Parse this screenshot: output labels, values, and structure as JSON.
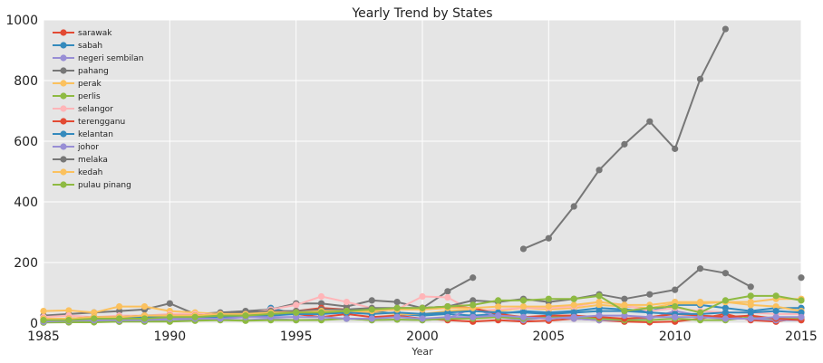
{
  "chart_data": {
    "type": "line",
    "title": "Yearly Trend by States",
    "xlabel": "Year",
    "ylabel": "",
    "xlim": [
      1985,
      2015
    ],
    "ylim": [
      0,
      1000
    ],
    "x_ticks": [
      "1985",
      "1990",
      "1995",
      "2000",
      "2005",
      "2010",
      "2015"
    ],
    "y_ticks": [
      "0",
      "200",
      "400",
      "600",
      "800",
      "1000"
    ],
    "grid": true,
    "legend_position": "top-left",
    "x": [
      1985,
      1986,
      1987,
      1988,
      1989,
      1990,
      1991,
      1992,
      1993,
      1994,
      1995,
      1996,
      1997,
      1998,
      1999,
      2000,
      2001,
      2002,
      2003,
      2004,
      2005,
      2006,
      2007,
      2008,
      2009,
      2010,
      2011,
      2012,
      2013,
      2014,
      2015
    ],
    "series": [
      {
        "name": "sarawak",
        "color": "#E24A33",
        "values": [
          5,
          3,
          8,
          6,
          10,
          25,
          30,
          28,
          35,
          40,
          30,
          20,
          30,
          20,
          25,
          15,
          10,
          5,
          10,
          5,
          8,
          15,
          10,
          5,
          3,
          5,
          15,
          30,
          10,
          5,
          18
        ]
      },
      {
        "name": "sabah",
        "color": "#348ABD",
        "values": [
          5,
          8,
          10,
          10,
          12,
          15,
          18,
          20,
          20,
          50,
          30,
          30,
          40,
          40,
          30,
          25,
          30,
          25,
          30,
          40,
          35,
          40,
          50,
          45,
          40,
          60,
          60,
          50,
          40,
          50,
          50
        ]
      },
      {
        "name": "negeri sembilan",
        "color": "#988ED5",
        "values": [
          3,
          3,
          5,
          5,
          8,
          8,
          10,
          12,
          10,
          15,
          10,
          12,
          15,
          10,
          12,
          10,
          15,
          50,
          20,
          10,
          20,
          15,
          10,
          10,
          15,
          40,
          25,
          20,
          15,
          10,
          10
        ]
      },
      {
        "name": "pahang",
        "color": "#777777",
        "values": [
          25,
          30,
          35,
          40,
          45,
          65,
          30,
          35,
          40,
          45,
          65,
          65,
          55,
          75,
          70,
          50,
          105,
          150,
          null,
          245,
          280,
          385,
          505,
          590,
          665,
          575,
          805,
          970,
          null,
          null,
          null
        ]
      },
      {
        "name": "perak",
        "color": "#FBC15E",
        "values": [
          40,
          42,
          35,
          55,
          55,
          40,
          35,
          30,
          30,
          35,
          30,
          40,
          35,
          35,
          30,
          30,
          40,
          45,
          40,
          50,
          45,
          50,
          60,
          55,
          50,
          65,
          65,
          70,
          60,
          55,
          40
        ]
      },
      {
        "name": "perlis",
        "color": "#8EBA42",
        "values": [
          2,
          3,
          3,
          5,
          5,
          5,
          8,
          10,
          8,
          10,
          10,
          10,
          15,
          10,
          12,
          10,
          15,
          15,
          20,
          15,
          20,
          20,
          15,
          10,
          10,
          15,
          10,
          10,
          20,
          15,
          15
        ]
      },
      {
        "name": "selangor",
        "color": "#FFB5B8",
        "values": [
          20,
          25,
          20,
          25,
          25,
          30,
          30,
          30,
          30,
          45,
          60,
          88,
          70,
          50,
          45,
          88,
          85,
          40,
          45,
          50,
          50,
          55,
          70,
          60,
          40,
          50,
          40,
          35,
          35,
          30,
          30
        ]
      },
      {
        "name": "terengganu",
        "color": "#E24A33",
        "values": [
          10,
          12,
          15,
          15,
          20,
          25,
          25,
          30,
          30,
          35,
          40,
          50,
          45,
          40,
          45,
          50,
          55,
          50,
          30,
          20,
          25,
          25,
          20,
          15,
          20,
          30,
          25,
          20,
          25,
          15,
          10
        ]
      },
      {
        "name": "kelantan",
        "color": "#348ABD",
        "values": [
          10,
          10,
          15,
          15,
          20,
          20,
          20,
          25,
          25,
          25,
          30,
          30,
          35,
          30,
          35,
          30,
          35,
          40,
          35,
          35,
          30,
          35,
          40,
          40,
          35,
          30,
          30,
          35,
          35,
          40,
          35
        ]
      },
      {
        "name": "johor",
        "color": "#988ED5",
        "values": [
          5,
          8,
          10,
          10,
          10,
          15,
          15,
          15,
          20,
          20,
          20,
          20,
          15,
          15,
          20,
          15,
          20,
          20,
          25,
          20,
          15,
          20,
          25,
          25,
          20,
          20,
          20,
          15,
          15,
          20,
          20
        ]
      },
      {
        "name": "melaka",
        "color": "#777777",
        "values": [
          15,
          15,
          20,
          20,
          25,
          25,
          25,
          30,
          35,
          40,
          40,
          45,
          45,
          50,
          50,
          50,
          55,
          75,
          70,
          80,
          70,
          80,
          95,
          80,
          95,
          110,
          180,
          165,
          120,
          null,
          150
        ]
      },
      {
        "name": "kedah",
        "color": "#FBC15E",
        "values": [
          15,
          15,
          20,
          20,
          25,
          25,
          25,
          30,
          30,
          35,
          35,
          40,
          40,
          40,
          45,
          45,
          50,
          50,
          55,
          55,
          55,
          60,
          70,
          60,
          60,
          70,
          70,
          70,
          70,
          80,
          80
        ]
      },
      {
        "name": "pulau pinang",
        "color": "#8EBA42",
        "values": [
          10,
          10,
          15,
          15,
          15,
          20,
          20,
          25,
          25,
          30,
          35,
          35,
          40,
          45,
          50,
          50,
          55,
          60,
          75,
          75,
          80,
          80,
          90,
          40,
          50,
          55,
          35,
          75,
          90,
          90,
          75
        ]
      }
    ]
  }
}
